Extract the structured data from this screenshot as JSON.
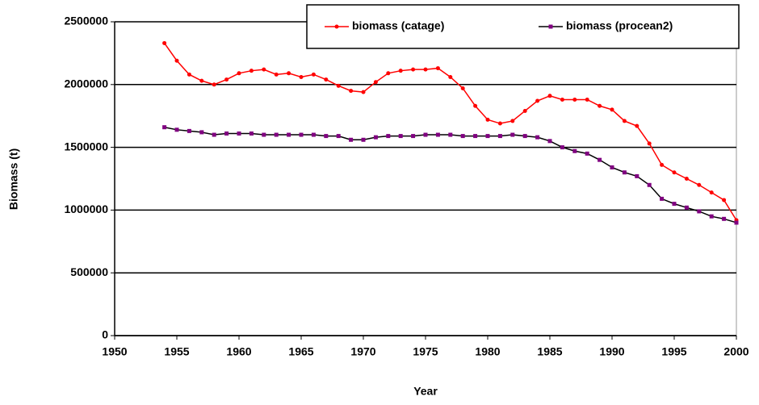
{
  "chart_data": {
    "type": "line",
    "x_label": "Year",
    "y_label": "Biomass (t)",
    "x": [
      1954,
      1955,
      1956,
      1957,
      1958,
      1959,
      1960,
      1961,
      1962,
      1963,
      1964,
      1965,
      1966,
      1967,
      1968,
      1969,
      1970,
      1971,
      1972,
      1973,
      1974,
      1975,
      1976,
      1977,
      1978,
      1979,
      1980,
      1981,
      1982,
      1983,
      1984,
      1985,
      1986,
      1987,
      1988,
      1989,
      1990,
      1991,
      1992,
      1993,
      1994,
      1995,
      1996,
      1997,
      1998,
      1999,
      2000
    ],
    "series": [
      {
        "name": "biomass (catage)",
        "color": "#ff0000",
        "marker": "circle",
        "marker_color": "#ff0000",
        "values": [
          2330000,
          2190000,
          2080000,
          2030000,
          2000000,
          2040000,
          2090000,
          2110000,
          2120000,
          2080000,
          2090000,
          2060000,
          2080000,
          2040000,
          1990000,
          1950000,
          1940000,
          2020000,
          2090000,
          2110000,
          2120000,
          2120000,
          2130000,
          2060000,
          1970000,
          1830000,
          1720000,
          1690000,
          1710000,
          1790000,
          1870000,
          1910000,
          1880000,
          1880000,
          1880000,
          1830000,
          1800000,
          1710000,
          1670000,
          1530000,
          1360000,
          1300000,
          1250000,
          1200000,
          1140000,
          1080000,
          920000
        ]
      },
      {
        "name": "biomass (procean2)",
        "color": "#000000",
        "marker": "square",
        "marker_color": "#800080",
        "values": [
          1660000,
          1640000,
          1630000,
          1620000,
          1600000,
          1610000,
          1610000,
          1610000,
          1600000,
          1600000,
          1600000,
          1600000,
          1600000,
          1590000,
          1590000,
          1560000,
          1560000,
          1580000,
          1590000,
          1590000,
          1590000,
          1600000,
          1600000,
          1600000,
          1590000,
          1590000,
          1590000,
          1590000,
          1600000,
          1590000,
          1580000,
          1550000,
          1500000,
          1470000,
          1450000,
          1400000,
          1340000,
          1300000,
          1270000,
          1200000,
          1090000,
          1050000,
          1020000,
          990000,
          950000,
          930000,
          900000
        ]
      }
    ],
    "xlim": [
      1950,
      2000
    ],
    "xticks": [
      1950,
      1955,
      1960,
      1965,
      1970,
      1975,
      1980,
      1985,
      1990,
      1995,
      2000
    ],
    "ylim": [
      0,
      2500000
    ],
    "yticks": [
      0,
      500000,
      1000000,
      1500000,
      2000000,
      2500000
    ],
    "grid": true,
    "legend": "upper right"
  }
}
